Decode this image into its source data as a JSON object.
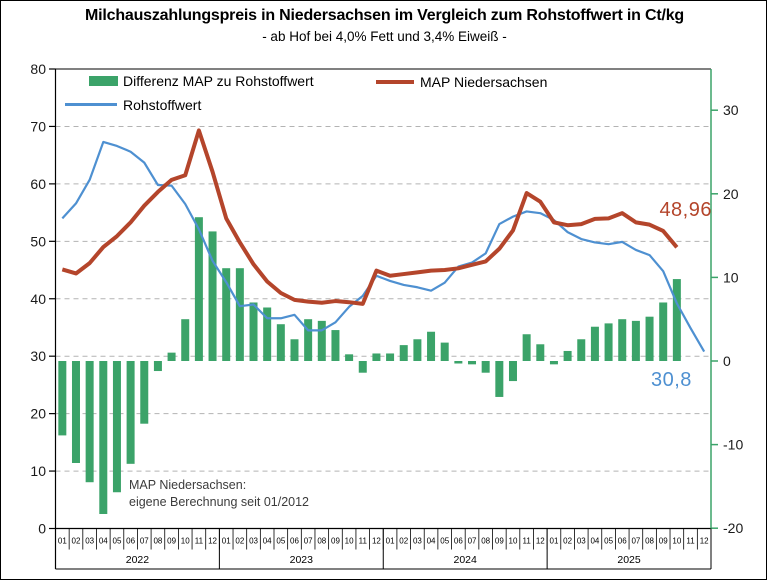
{
  "header": {
    "title": "Milchauszahlungspreis in Niedersachsen im Vergleich zum Rohstoffwert in Ct/kg",
    "subtitle": "- ab Hof bei 4,0% Fett und 3,4% Eiweiß -"
  },
  "legend": [
    {
      "label": "Differenz MAP zu Rohstoffwert",
      "swatch": "bar",
      "color": "#3BA369"
    },
    {
      "label": "MAP Niedersachsen",
      "swatch": "line",
      "color": "#B4452B"
    },
    {
      "label": "Rohstoffwert",
      "swatch": "line",
      "color": "#4E90D1"
    }
  ],
  "annotation": {
    "line1": "MAP Niedersachsen:",
    "line2": "eigene Berechnung seit 01/2012"
  },
  "end_labels": {
    "map": "48,96",
    "rohstoffwert": "30,8"
  },
  "axes": {
    "left_ticks": [
      0,
      10,
      20,
      30,
      40,
      50,
      60,
      70,
      80
    ],
    "right_ticks": [
      -20,
      -10,
      0,
      10,
      20,
      30
    ],
    "months": [
      "01",
      "02",
      "03",
      "04",
      "05",
      "06",
      "07",
      "08",
      "09",
      "10",
      "11",
      "12"
    ],
    "years": [
      "2022",
      "2023",
      "2024",
      "2025"
    ]
  },
  "colors": {
    "bar_green": "#3BA369",
    "map_red": "#B4452B",
    "rsw_blue": "#4E90D1",
    "grid_gray": "#B3B3B3",
    "axis_black": "#000000"
  },
  "chart_data": {
    "type": "bar+line combo, monthly 01/2022 - 12/2025",
    "left_axis": {
      "min": 0,
      "max": 80,
      "step": 10
    },
    "right_axis": {
      "min": -20,
      "max": 30,
      "step": 10
    },
    "grid": "horizontal dashed, left axis steps",
    "legend_position": "top-left inside plot",
    "series": [
      {
        "name": "Differenz MAP zu Rohstoffwert",
        "type": "bar",
        "axis": "right",
        "color": "#3BA369",
        "values": [
          -8.9,
          -12.2,
          -14.5,
          -18.3,
          -15.7,
          -12.3,
          -7.5,
          -1.2,
          1.0,
          5.0,
          17.2,
          15.5,
          11.1,
          11.1,
          7.0,
          6.4,
          4.4,
          2.6,
          5.0,
          4.8,
          3.7,
          0.8,
          -1.4,
          0.9,
          0.9,
          1.9,
          2.6,
          3.5,
          2.2,
          -0.3,
          -0.4,
          -1.4,
          -4.3,
          -2.4,
          3.2,
          2.0,
          -0.4,
          1.2,
          2.6,
          4.1,
          4.5,
          5.0,
          4.8,
          5.3,
          7.0,
          9.8
        ]
      },
      {
        "name": "MAP Niedersachsen",
        "type": "line",
        "axis": "left",
        "color": "#B4452B",
        "values": [
          45.1,
          44.4,
          46.2,
          49.0,
          50.9,
          53.3,
          56.2,
          58.6,
          60.7,
          61.5,
          69.3,
          62.1,
          54.0,
          49.8,
          46.0,
          43.0,
          41.0,
          39.8,
          39.5,
          39.3,
          39.6,
          39.4,
          39.1,
          44.9,
          44.0,
          44.3,
          44.6,
          44.9,
          45.0,
          45.3,
          45.9,
          46.5,
          48.7,
          51.9,
          58.4,
          56.9,
          53.3,
          52.8,
          53.0,
          53.9,
          54.0,
          54.9,
          53.3,
          52.9,
          51.8,
          48.96
        ]
      },
      {
        "name": "Rohstoffwert",
        "type": "line",
        "axis": "left",
        "color": "#4E90D1",
        "values": [
          54.0,
          56.6,
          60.7,
          67.3,
          66.6,
          65.6,
          63.7,
          59.8,
          59.7,
          56.5,
          52.1,
          46.6,
          42.9,
          38.7,
          39.0,
          36.6,
          36.6,
          37.2,
          34.5,
          34.5,
          35.9,
          38.6,
          40.5,
          44.0,
          43.1,
          42.4,
          42.0,
          41.4,
          42.8,
          45.6,
          46.3,
          47.9,
          53.0,
          54.3,
          55.2,
          54.9,
          53.7,
          51.6,
          50.4,
          49.8,
          49.5,
          49.9,
          48.5,
          47.6,
          44.8,
          39.2,
          34.9,
          30.8
        ]
      }
    ],
    "last_values": {
      "map_niedersachsen": 48.96,
      "rohstoffwert": 30.8
    }
  }
}
